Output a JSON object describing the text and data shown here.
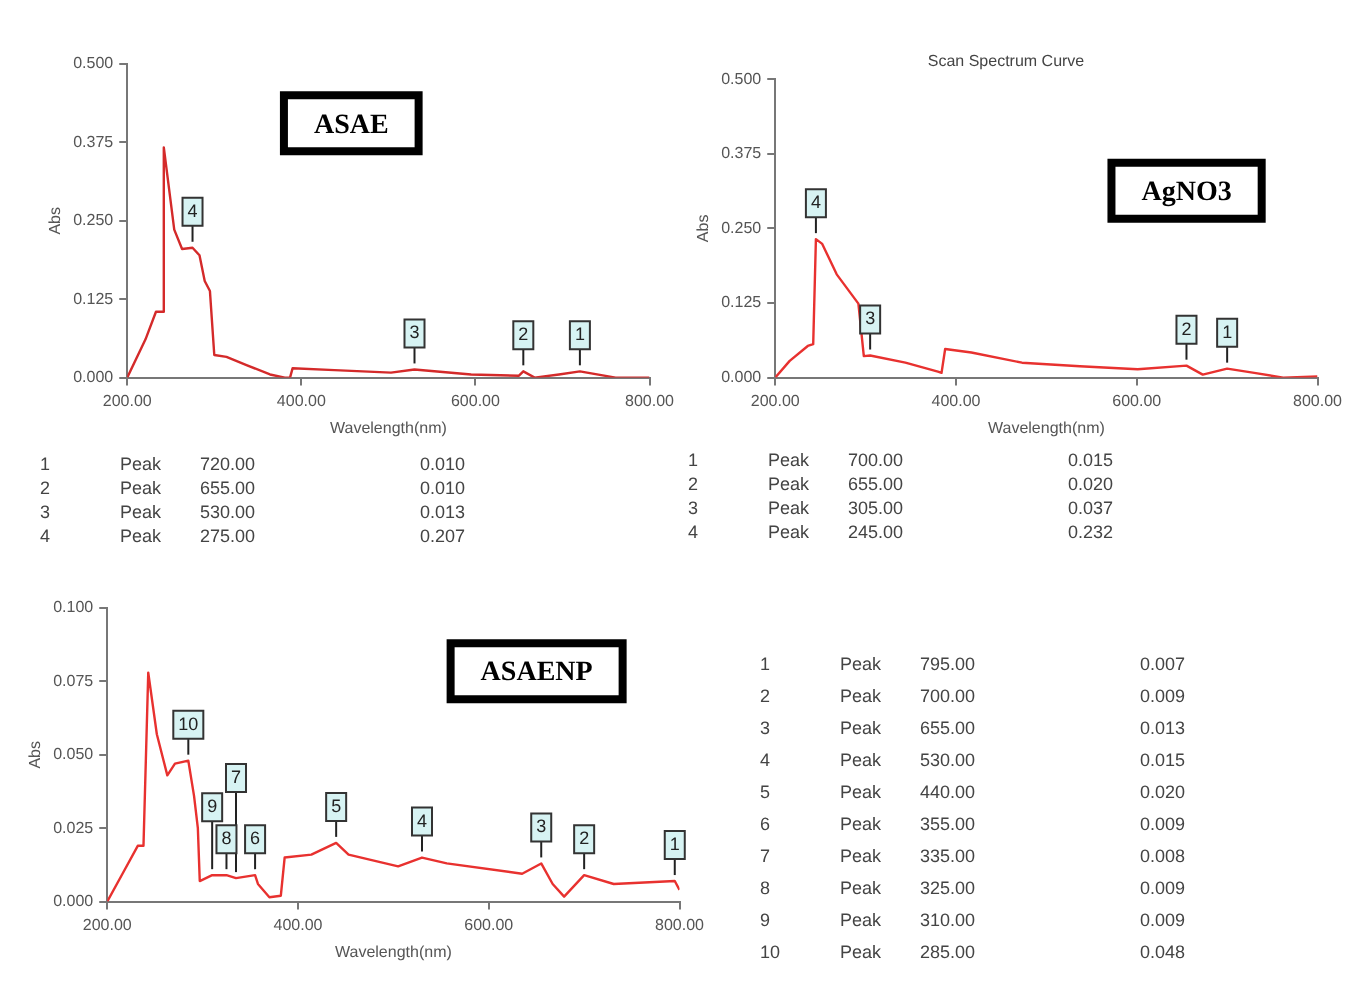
{
  "chart_data": [
    {
      "type": "line",
      "subtitle": "ASAE",
      "xlabel": "Wavelength(nm)",
      "ylabel": "Abs",
      "x": [
        200,
        221,
        233,
        240,
        242,
        254,
        263,
        275,
        283,
        289,
        295,
        300,
        314,
        337,
        364,
        381,
        387,
        390,
        438,
        503,
        530,
        595,
        650,
        655,
        668,
        696,
        720,
        761,
        800
      ],
      "series": [
        {
          "color": "#d42a2a",
          "values": [
            0,
            0.061,
            0.105,
            0.105,
            0.367,
            0.236,
            0.205,
            0.207,
            0.195,
            0.154,
            0.138,
            0.036,
            0.033,
            0.02,
            0.005,
            0,
            0,
            0.015,
            0.012,
            0.008,
            0.013,
            0.005,
            0.003,
            0.01,
            0,
            0.005,
            0.01,
            0,
            0
          ]
        }
      ],
      "xlim": [
        200,
        800
      ],
      "ylim": [
        0,
        0.5
      ],
      "xticks": [
        {
          "value": 200,
          "label": "200.00"
        },
        {
          "value": 400,
          "label": "400.00"
        },
        {
          "value": 600,
          "label": "600.00"
        },
        {
          "value": 800,
          "label": "800.00"
        }
      ],
      "yticks": [
        {
          "value": 0,
          "label": "0.000"
        },
        {
          "value": 0.125,
          "label": "0.125"
        },
        {
          "value": 0.25,
          "label": "0.250"
        },
        {
          "value": 0.375,
          "label": "0.375"
        },
        {
          "value": 0.5,
          "label": "0.500"
        }
      ],
      "annotations": [
        {
          "text": "1",
          "x": 720,
          "y": 0.01
        },
        {
          "text": "2",
          "x": 655,
          "y": 0.01
        },
        {
          "text": "3",
          "x": 530,
          "y": 0.013
        },
        {
          "text": "4",
          "x": 275,
          "y": 0.207
        },
        "1 Peak 720.00 0.010",
        "2 Peak 655.00 0.010",
        "3 Peak 530.00 0.013",
        "4 Peak 275.00 0.207"
      ]
    },
    {
      "type": "line",
      "title": "Scan Spectrum Curve",
      "subtitle": "AgNO3",
      "xlabel": "Wavelength(nm)",
      "ylabel": "Abs",
      "x": [
        200,
        216,
        236,
        242,
        245,
        252,
        268,
        292,
        298,
        305,
        344,
        380,
        384,
        388,
        417,
        473,
        537,
        601,
        655,
        673,
        700,
        730,
        762,
        800
      ],
      "series": [
        {
          "color": "#e8312f",
          "values": [
            0,
            0.028,
            0.053,
            0.056,
            0.232,
            0.224,
            0.173,
            0.124,
            0.036,
            0.037,
            0.025,
            0.01,
            0.008,
            0.048,
            0.042,
            0.025,
            0.019,
            0.014,
            0.02,
            0.005,
            0.015,
            0.008,
            0,
            0.002
          ]
        }
      ],
      "xlim": [
        200,
        800
      ],
      "ylim": [
        0,
        0.5
      ],
      "xticks": [
        {
          "value": 200,
          "label": "200.00"
        },
        {
          "value": 400,
          "label": "400.00"
        },
        {
          "value": 600,
          "label": "600.00"
        },
        {
          "value": 800,
          "label": "800.00"
        }
      ],
      "yticks": [
        {
          "value": 0,
          "label": "0.000"
        },
        {
          "value": 0.125,
          "label": "0.125"
        },
        {
          "value": 0.25,
          "label": "0.250"
        },
        {
          "value": 0.375,
          "label": "0.375"
        },
        {
          "value": 0.5,
          "label": "0.500"
        }
      ],
      "annotations": [
        {
          "text": "1",
          "x": 700,
          "y": 0.015
        },
        {
          "text": "2",
          "x": 655,
          "y": 0.02
        },
        {
          "text": "3",
          "x": 305,
          "y": 0.037
        },
        {
          "text": "4",
          "x": 245,
          "y": 0.232
        },
        "1 Peak 700.00 0.015",
        "2 Peak 655.00 0.020",
        "3 Peak 305.00 0.037",
        "4 Peak 245.00 0.232"
      ]
    },
    {
      "type": "line",
      "subtitle": "ASAENP",
      "xlabel": "Wavelength(nm)",
      "ylabel": "Abs",
      "x": [
        200,
        216,
        232,
        238,
        243,
        252,
        263,
        271,
        285,
        291,
        295,
        297,
        310,
        325,
        335,
        355,
        358,
        370,
        382,
        386,
        414,
        440,
        453,
        505,
        530,
        556,
        635,
        655,
        667,
        679,
        700,
        731,
        795,
        800
      ],
      "series": [
        {
          "color": "#e8312f",
          "values": [
            0,
            0.0095,
            0.019,
            0.019,
            0.078,
            0.057,
            0.043,
            0.047,
            0.048,
            0.036,
            0.025,
            0.007,
            0.009,
            0.009,
            0.008,
            0.009,
            0.006,
            0.0015,
            0.002,
            0.015,
            0.016,
            0.02,
            0.016,
            0.012,
            0.015,
            0.013,
            0.0095,
            0.013,
            0.006,
            0.0017,
            0.009,
            0.006,
            0.007,
            0.004
          ]
        }
      ],
      "xlim": [
        200,
        800
      ],
      "ylim": [
        0,
        0.1
      ],
      "xticks": [
        {
          "value": 200,
          "label": "200.00"
        },
        {
          "value": 400,
          "label": "400.00"
        },
        {
          "value": 600,
          "label": "600.00"
        },
        {
          "value": 800,
          "label": "800.00"
        }
      ],
      "yticks": [
        {
          "value": 0,
          "label": "0.000"
        },
        {
          "value": 0.025,
          "label": "0.025"
        },
        {
          "value": 0.05,
          "label": "0.050"
        },
        {
          "value": 0.075,
          "label": "0.075"
        },
        {
          "value": 0.1,
          "label": "0.100"
        }
      ],
      "annotations": [
        {
          "text": "1",
          "x": 795,
          "y": 0.007
        },
        {
          "text": "2",
          "x": 700,
          "y": 0.009
        },
        {
          "text": "3",
          "x": 655,
          "y": 0.013
        },
        {
          "text": "4",
          "x": 530,
          "y": 0.015
        },
        {
          "text": "5",
          "x": 440,
          "y": 0.02
        },
        {
          "text": "6",
          "x": 355,
          "y": 0.009
        },
        {
          "text": "7",
          "x": 335,
          "y": 0.008
        },
        {
          "text": "8",
          "x": 325,
          "y": 0.009
        },
        {
          "text": "9",
          "x": 310,
          "y": 0.009
        },
        {
          "text": "10",
          "x": 285,
          "y": 0.048
        },
        "1 Peak 795.00 0.007",
        "2 Peak 700.00 0.009",
        "3 Peak 655.00 0.013",
        "4 Peak 530.00 0.015",
        "5 Peak 440.00 0.020",
        "6 Peak 355.00 0.009",
        "7 Peak 335.00 0.008",
        "8 Peak 325.00 0.009",
        "9 Peak 310.00 0.009",
        "10 Peak 285.00 0.048"
      ]
    }
  ]
}
